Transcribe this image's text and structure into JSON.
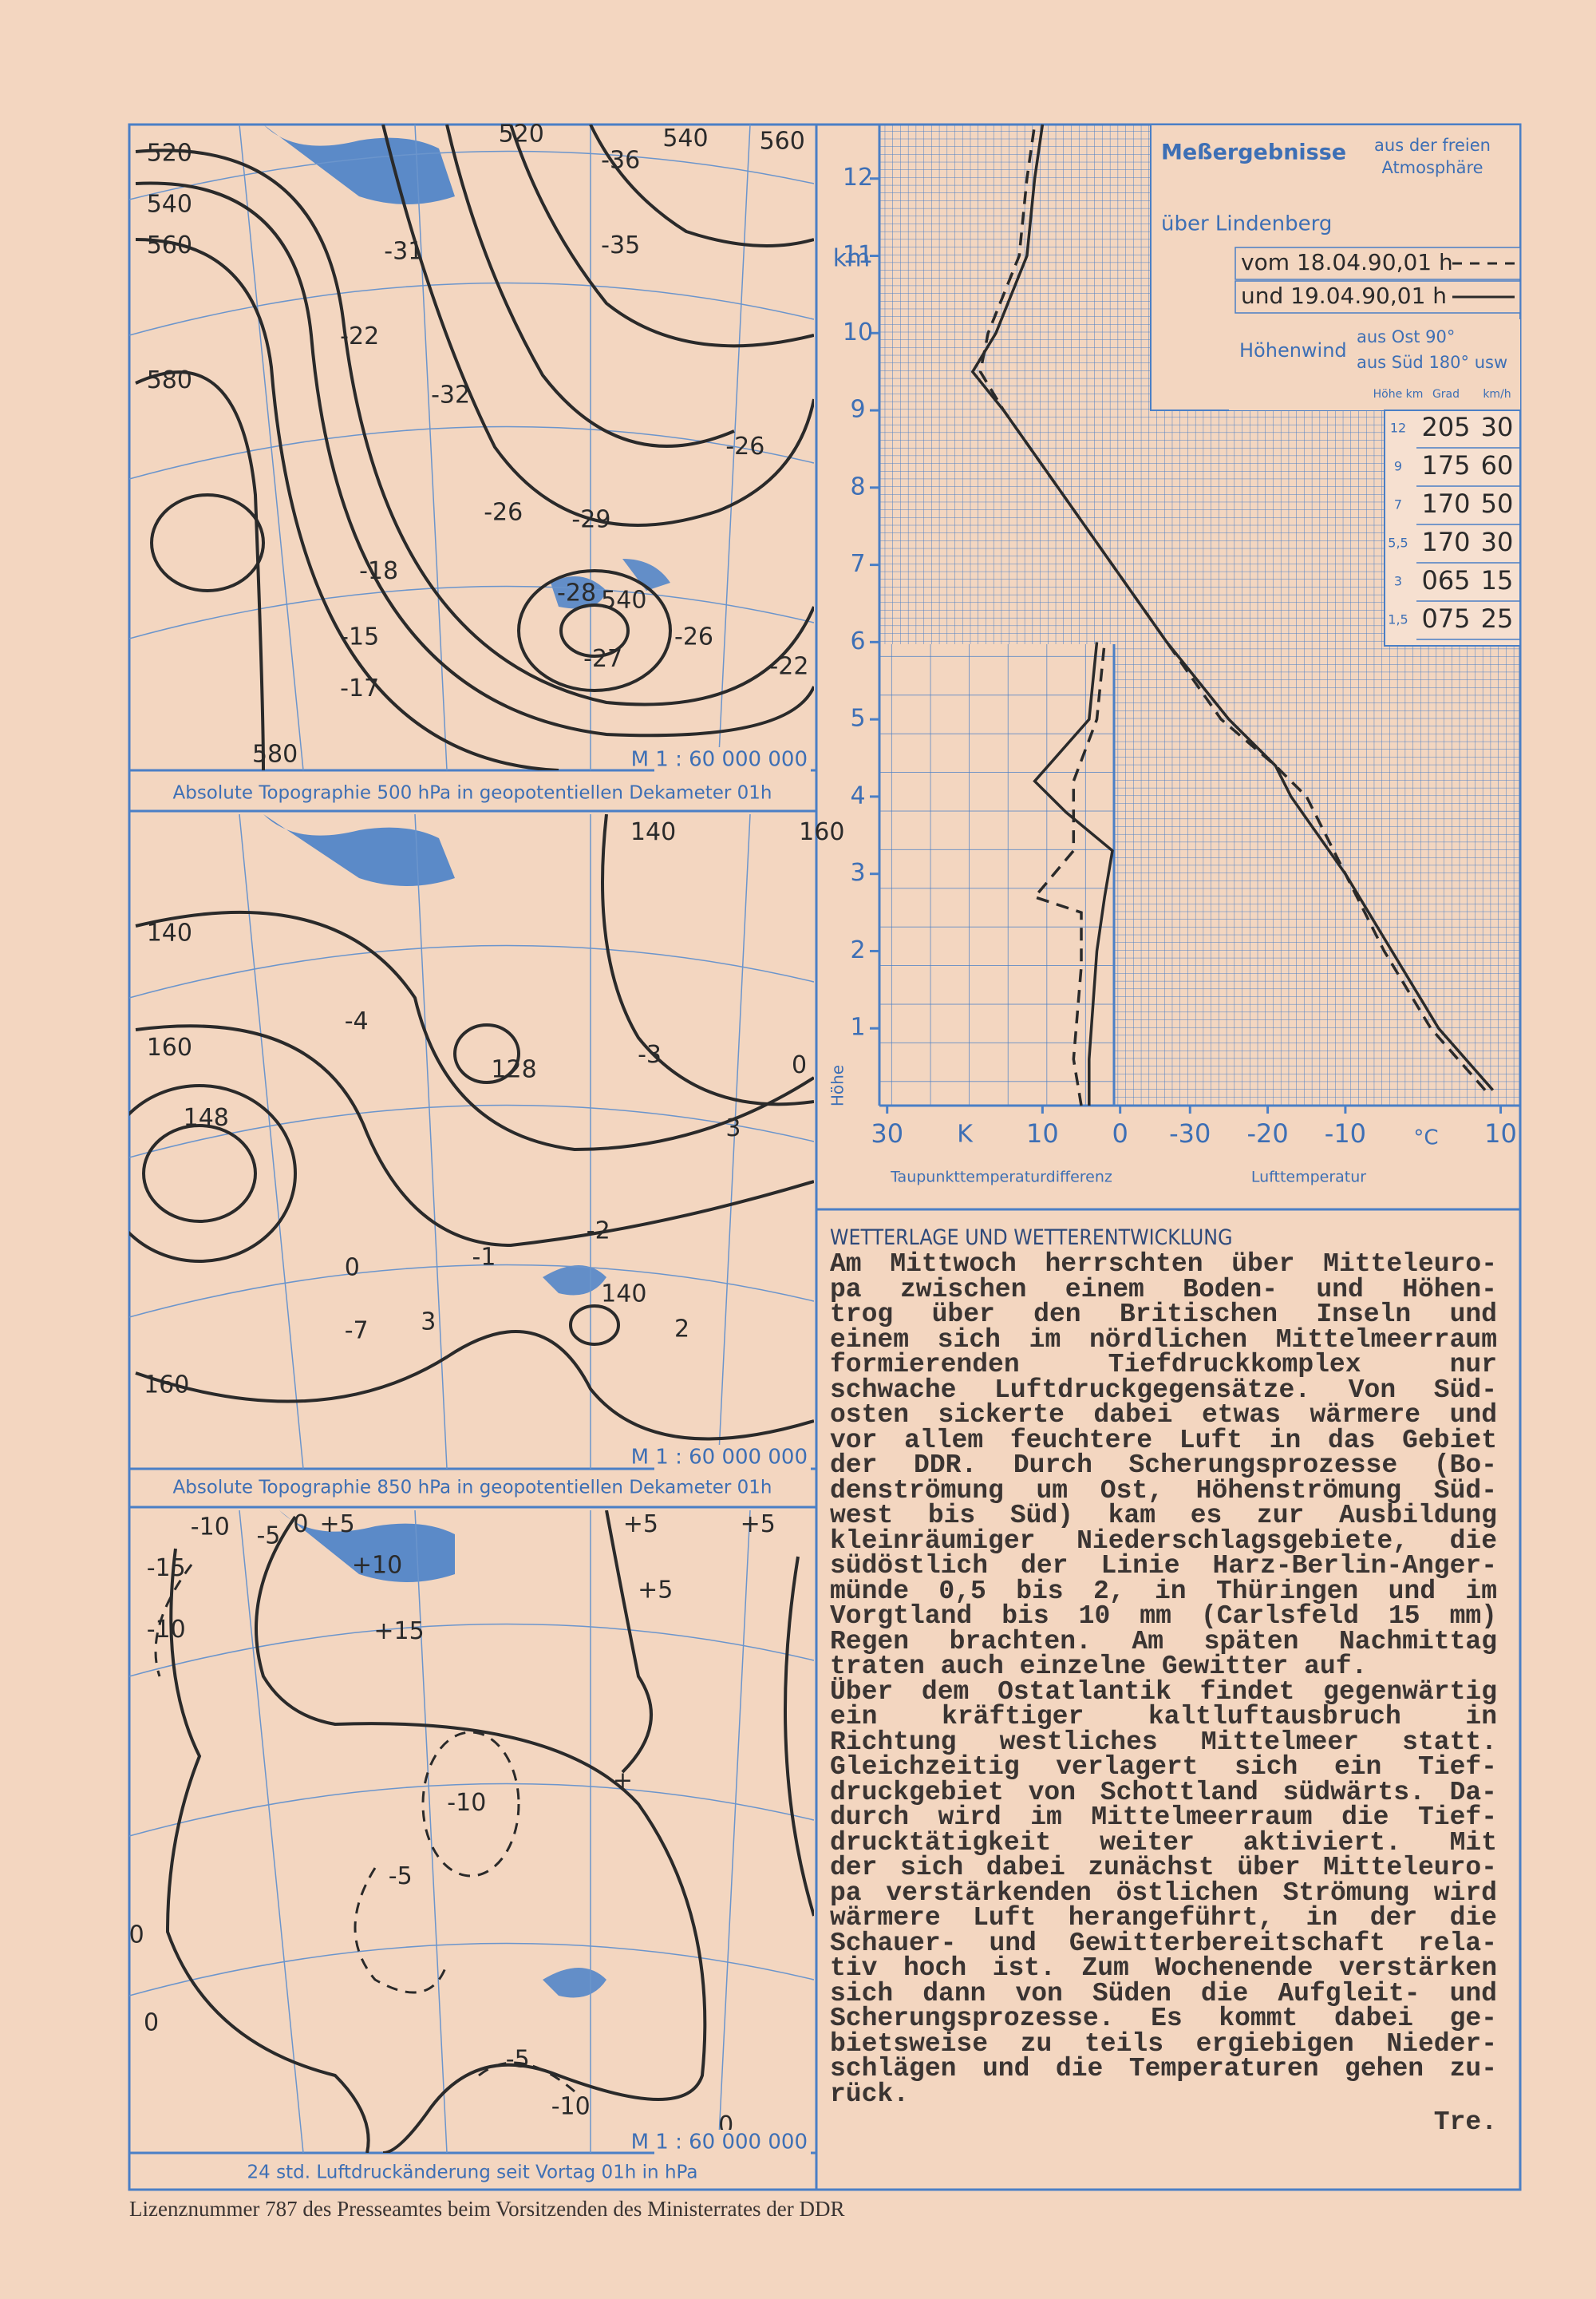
{
  "maps": [
    {
      "caption": "Absolute Topographie 500  hPa  in geopotentiellen Dekameter 01h",
      "scale": "M 1 : 60 000 000",
      "labels": [
        "520",
        "540",
        "560",
        "520",
        "540",
        "560",
        "580",
        "-36",
        "-31",
        "-35",
        "-22",
        "-32",
        "-26",
        "-29",
        "-28",
        "540",
        "-27",
        "-26",
        "-18",
        "-15",
        "-17",
        "-26",
        "-22",
        "580"
      ]
    },
    {
      "caption": "Absolute Topographie 850  hPa  in geopotentiellen Dekameter 01h",
      "scale": "M 1 : 60 000 000",
      "labels": [
        "140",
        "160",
        "140",
        "160",
        "148",
        "-4",
        "-3",
        "128",
        "0",
        "3",
        "-2",
        "-1",
        "140",
        "2",
        "0",
        "-7",
        "160",
        "3"
      ]
    },
    {
      "caption": "24 std. Luftdruckänderung seit Vortag 01h in  hPa",
      "scale": "M 1 : 60 000 000",
      "labels": [
        "-10",
        "-5",
        "0",
        "+5",
        "+10",
        "-15",
        "-10",
        "+15",
        "+5",
        "+5",
        "+5",
        "-10",
        "+",
        "-5",
        "0",
        "0",
        "-5",
        "-10",
        "0"
      ]
    }
  ],
  "sounding": {
    "title": "Meßergebnisse",
    "subtitle": [
      "aus der freien",
      "Atmosphäre"
    ],
    "location": "über Lindenberg",
    "yunit": "km",
    "ylabel": "Höhe",
    "ylim": [
      0,
      12.7
    ],
    "yticks": [
      1,
      2,
      3,
      4,
      5,
      6,
      7,
      8,
      9,
      10,
      11,
      12
    ],
    "dew_xlim": [
      31,
      -51
    ],
    "dew_xticks": [
      30,
      10,
      0
    ],
    "dew_unit": "K",
    "dew_label": "Taupunkttemperaturdifferenz",
    "temp_xlim": [
      -70,
      12
    ],
    "temp_xticks": [
      -30,
      -20,
      -10,
      10
    ],
    "temp_unit": "°C",
    "temp_label": "Lufttemperatur",
    "series": [
      {
        "name": "vom 18.04.90,01 h",
        "color": "#2a2a2a",
        "dash": true,
        "temp_heights": [
          0.2,
          1,
          2,
          3,
          4,
          4.4,
          5,
          6,
          7,
          8,
          9,
          9.5,
          10,
          11,
          12,
          12.7
        ],
        "temp": [
          8,
          1,
          -5,
          -10,
          -15,
          -19,
          -26,
          -33,
          -40,
          -47,
          -54,
          -57,
          -56,
          -52,
          -51,
          -50
        ],
        "dew_heights": [
          0,
          0.6,
          1.8,
          2.5,
          2.7,
          3.3,
          4.2,
          5,
          6
        ],
        "dew": [
          5,
          6,
          5,
          5,
          11,
          6,
          6,
          3,
          2
        ]
      },
      {
        "name": "und 19.04.90,01 h",
        "color": "#2a2a2a",
        "dash": false,
        "temp_heights": [
          0.2,
          1,
          2,
          3,
          4,
          4.4,
          5,
          6,
          7,
          8,
          9,
          9.5,
          10,
          11,
          12,
          12.7
        ],
        "temp": [
          9,
          2,
          -4,
          -10,
          -17,
          -19,
          -25,
          -33,
          -40,
          -47,
          -54,
          -58,
          -55,
          -51,
          -50,
          -49
        ],
        "dew_heights": [
          0,
          0.6,
          2,
          2.7,
          3.3,
          3.8,
          4.2,
          5,
          6
        ],
        "dew": [
          4,
          4,
          3,
          2,
          1,
          7,
          11,
          4,
          3
        ]
      }
    ],
    "wind_title": "Höhenwind",
    "wind_notes": [
      "aus Ost  90°",
      "aus Süd 180° usw"
    ],
    "wind_header": [
      "Höhe km",
      "Grad",
      "km/h"
    ],
    "wind_rows": [
      [
        "12",
        "205",
        "30"
      ],
      [
        "9",
        "175",
        "60"
      ],
      [
        "7",
        "170",
        "50"
      ],
      [
        "5,5",
        "170",
        "30"
      ],
      [
        "3",
        "065",
        "15"
      ],
      [
        "1,5",
        "075",
        "25"
      ]
    ]
  },
  "article": {
    "heading": "WETTERLAGE UND WETTERENTWICKLUNG",
    "lines": [
      "Am Mittwoch herrschten über Mitteleuro-",
      "pa zwischen einem Boden- und Höhen-",
      "trog über den Britischen Inseln und",
      "einem sich im nördlichen Mittelmeerraum",
      "formierenden Tiefdruckkomplex nur",
      "schwache Luftdruckgegensätze. Von Süd-",
      "osten sickerte dabei etwas wärmere und",
      "vor allem feuchtere Luft in das Gebiet",
      "der DDR. Durch Scherungsprozesse (Bo-",
      "denströmung um Ost, Höhenströmung Süd-",
      "west bis Süd) kam es zur Ausbildung",
      "kleinräumiger Niederschlagsgebiete, die",
      "südöstlich der Linie Harz-Berlin-Anger-",
      "münde 0,5 bis 2, in Thüringen und im",
      "Vorgtland bis 10 mm (Carlsfeld 15 mm)",
      "Regen brachten. Am späten Nachmittag",
      "traten auch einzelne Gewitter auf.",
      "Über dem Ostatlantik findet gegenwärtig",
      "ein kräftiger kaltluftausbruch in",
      "Richtung westliches Mittelmeer statt.",
      "Gleichzeitig verlagert sich ein Tief-",
      "druckgebiet von Schottland südwärts. Da-",
      "durch wird im Mittelmeerraum die Tief-",
      "drucktätigkeit weiter aktiviert. Mit",
      "der sich dabei zunächst über Mitteleuro-",
      "pa verstärkenden östlichen Strömung wird",
      "wärmere Luft herangeführt, in der die",
      "Schauer- und Gewitterbereitschaft rela-",
      "tiv hoch ist. Zum Wochenende verstärken",
      "sich dann von Süden die Aufgleit- und",
      "Scherungsprozesse. Es kommt dabei ge-",
      "bietsweise zu teils ergiebigen Nieder-",
      "schlägen und die Temperaturen gehen zu-",
      "rück."
    ],
    "signature": "Tre."
  },
  "footer": "Lizenznummer 787 des Presseamtes beim Vorsitzenden des Ministerrates der DDR"
}
